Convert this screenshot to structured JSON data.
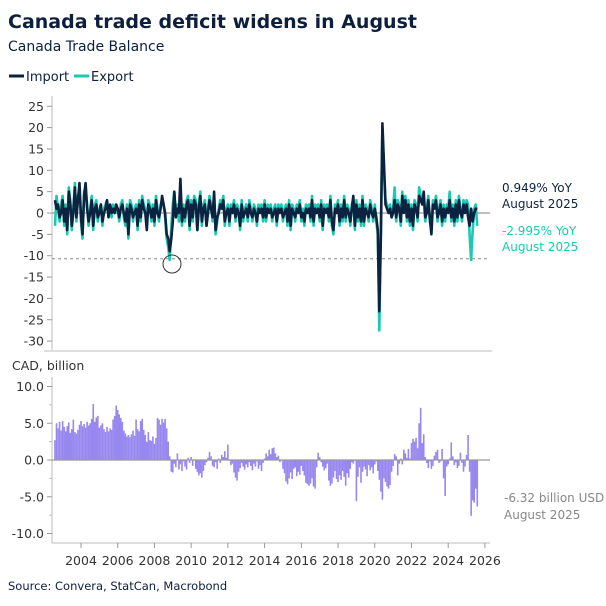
{
  "title": "Canada trade deficit widens in August",
  "subtitle": "Canada Trade Balance",
  "source": "Source: Convera, StatCan, Macrobond",
  "colors": {
    "import": "#0b2340",
    "export": "#19c9b2",
    "balance": "#9787ef",
    "title": "#0c1f3f"
  },
  "chart_data": [
    {
      "type": "line",
      "legend": [
        "Import",
        "Export"
      ],
      "legend_position": "top-left",
      "start": "2002-08",
      "frequency": "monthly",
      "ylim": [
        -30,
        25
      ],
      "yticks": [
        25,
        20,
        15,
        10,
        5,
        0,
        -5,
        -10,
        -15,
        -20,
        -25,
        -30
      ],
      "reference_line": -10.7,
      "annotations": {
        "import_value": "0.949% YoY",
        "import_date": "August 2025",
        "export_value": "-2.995% YoY",
        "export_date": "August 2025"
      },
      "series": [
        {
          "name": "Import",
          "values": [
            3,
            1,
            2,
            -1,
            0,
            3,
            -2,
            1,
            -4,
            5,
            2,
            -3,
            0,
            6,
            -1,
            3,
            7,
            -1,
            -5,
            4,
            7,
            1,
            -2,
            0,
            3,
            -3,
            1,
            2,
            -1,
            0,
            2,
            -2,
            0,
            1,
            3,
            -1,
            2,
            0,
            1,
            0,
            2,
            1,
            -1,
            1,
            2,
            0,
            -2,
            1,
            -5,
            2,
            1,
            -1,
            0,
            1,
            -3,
            2,
            -1,
            3,
            1,
            0,
            -4,
            2,
            1,
            -1,
            1,
            -2,
            3,
            0,
            -1,
            1,
            4,
            2,
            0,
            -5,
            -6,
            -9,
            -6,
            -2,
            5,
            -1,
            1,
            0,
            8,
            -2,
            1,
            -1,
            2,
            3,
            -3,
            2,
            -1,
            3,
            2,
            -4,
            1,
            4,
            -2,
            1,
            2,
            -3,
            0,
            3,
            1,
            -1,
            5,
            -4,
            -1,
            0,
            2,
            1,
            3,
            -2,
            0,
            1,
            -2,
            1,
            0,
            2,
            -1,
            1,
            0,
            -3,
            2,
            -1,
            0,
            1,
            -1,
            2,
            0,
            -1,
            1,
            0,
            -2,
            1,
            0,
            1,
            -1,
            2,
            -1,
            1,
            0,
            1,
            -1,
            0,
            1,
            -2,
            1,
            0,
            1,
            -1,
            0,
            1,
            -2,
            2,
            -3,
            1,
            0,
            -1,
            1,
            0,
            2,
            -1,
            0,
            -2,
            1,
            0,
            1,
            -1,
            3,
            -2,
            1,
            0,
            1,
            -1,
            2,
            -3,
            1,
            0,
            1,
            -1,
            3,
            -2,
            -4,
            1,
            0,
            2,
            -2,
            1,
            -1,
            3,
            -1,
            1,
            0,
            -2,
            1,
            4,
            -3,
            2,
            -1,
            1,
            -2,
            3,
            -2,
            1,
            0,
            -1,
            2,
            0,
            -1,
            1,
            -1,
            -4,
            -23,
            -5,
            21,
            12,
            2,
            1,
            0,
            1,
            -1,
            0,
            3,
            -1,
            2,
            1,
            -2,
            4,
            0,
            3,
            -1,
            2,
            -2,
            1,
            -3,
            2,
            1,
            -1,
            4,
            3,
            2,
            5,
            -1,
            0,
            3,
            -1,
            -5,
            2,
            1,
            3,
            -1,
            0,
            2,
            -2,
            1,
            -1,
            1,
            0,
            3,
            -1,
            1,
            -2,
            2,
            -1,
            3,
            0,
            -1,
            2,
            0,
            2,
            -1,
            -3,
            1,
            -2,
            0,
            1,
            0.949
          ]
        },
        {
          "name": "Export",
          "values": [
            -3,
            4,
            1,
            -2,
            2,
            4,
            -3,
            2,
            -5,
            6,
            3,
            -4,
            1,
            7,
            -2,
            4,
            5,
            -2,
            -6,
            5,
            6,
            2,
            -3,
            1,
            4,
            -4,
            2,
            3,
            -2,
            1,
            2,
            -3,
            1,
            2,
            3,
            -1,
            1,
            -1,
            2,
            0,
            1,
            1,
            -2,
            2,
            3,
            -1,
            -3,
            2,
            -6,
            3,
            2,
            -2,
            1,
            2,
            -4,
            3,
            -2,
            4,
            2,
            1,
            -3,
            3,
            2,
            -2,
            2,
            -3,
            4,
            1,
            -2,
            2,
            3,
            2,
            -1,
            -6,
            -8,
            -11,
            -3,
            2,
            5,
            -1,
            2,
            -2,
            4,
            -3,
            2,
            -2,
            3,
            4,
            -4,
            3,
            -2,
            4,
            3,
            -4,
            2,
            5,
            -3,
            2,
            3,
            -3,
            1,
            4,
            2,
            -2,
            4,
            -5,
            -2,
            1,
            3,
            2,
            4,
            -3,
            1,
            2,
            -3,
            2,
            1,
            3,
            -2,
            2,
            1,
            -4,
            3,
            -2,
            1,
            2,
            -2,
            3,
            1,
            -2,
            2,
            1,
            -3,
            2,
            1,
            2,
            -2,
            3,
            -2,
            2,
            1,
            2,
            -2,
            1,
            2,
            -3,
            2,
            1,
            2,
            -2,
            1,
            2,
            -3,
            3,
            -4,
            2,
            1,
            -2,
            2,
            1,
            3,
            -2,
            1,
            -3,
            2,
            1,
            2,
            -2,
            4,
            -3,
            2,
            1,
            2,
            -2,
            3,
            -4,
            2,
            1,
            2,
            -2,
            4,
            -3,
            -5,
            2,
            1,
            3,
            -3,
            2,
            -2,
            4,
            -2,
            2,
            1,
            -3,
            2,
            3,
            -4,
            3,
            -2,
            2,
            -3,
            4,
            -3,
            2,
            1,
            -2,
            3,
            1,
            -2,
            2,
            -2,
            -5,
            -27.5,
            -3,
            20,
            10,
            3,
            2,
            1,
            2,
            -1,
            1,
            6,
            -2,
            3,
            2,
            -3,
            5,
            1,
            4,
            -2,
            3,
            -3,
            2,
            -4,
            3,
            2,
            -2,
            6,
            4,
            3,
            3,
            -2,
            1,
            4,
            -2,
            -4,
            3,
            2,
            4,
            -2,
            1,
            3,
            -3,
            2,
            -2,
            2,
            1,
            5,
            -2,
            2,
            -3,
            3,
            -2,
            4,
            1,
            -2,
            3,
            1,
            3,
            2,
            -5,
            -11,
            -4,
            1,
            2,
            -2.995
          ]
        }
      ]
    },
    {
      "type": "bar",
      "ylabel": "CAD, billion",
      "start": "2002-08",
      "frequency": "monthly",
      "ylim": [
        -10,
        10
      ],
      "yticks": [
        "10.0",
        "5.0",
        "0.0",
        "-5.0",
        "-10.0"
      ],
      "xticks": [
        "2004",
        "2006",
        "2008",
        "2010",
        "2012",
        "2014",
        "2016",
        "2018",
        "2020",
        "2022",
        "2024",
        "2026"
      ],
      "annotations": {
        "value": "-6.32 billion USD",
        "date": "August 2025"
      },
      "series": [
        {
          "name": "Trade Balance",
          "values": [
            2.7,
            5.0,
            4.3,
            5.2,
            4.0,
            5.3,
            4.5,
            3.9,
            4.6,
            5.1,
            3.7,
            4.2,
            5.5,
            3.8,
            3.6,
            4.1,
            4.8,
            5.3,
            4.6,
            4.9,
            4.4,
            5.2,
            4.7,
            5.0,
            5.6,
            7.6,
            5.2,
            5.8,
            6.0,
            4.4,
            4.7,
            5.0,
            4.2,
            3.8,
            4.5,
            3.9,
            4.3,
            4.1,
            5.5,
            6.0,
            7.4,
            6.8,
            6.2,
            5.7,
            5.2,
            4.0,
            3.6,
            3.2,
            3.4,
            3.1,
            3.5,
            4.0,
            3.3,
            5.5,
            4.2,
            3.9,
            5.3,
            5.6,
            4.1,
            3.4,
            2.5,
            3.8,
            2.7,
            2.6,
            3.2,
            2.2,
            3.0,
            5.7,
            5.5,
            4.8,
            5.6,
            5.1,
            5.6,
            4.3,
            2.5,
            0.5,
            -1.6,
            -1.7,
            -0.5,
            -1.0,
            0.9,
            -1.3,
            -0.6,
            -1.5,
            -0.2,
            -0.9,
            -1.3,
            0.3,
            -0.4,
            0.4,
            -0.8,
            0.1,
            -1.2,
            -1.6,
            -2.1,
            -1.8,
            -2.4,
            -1.5,
            -0.7,
            -0.3,
            0.3,
            1.1,
            0.5,
            -0.8,
            -1.0,
            -0.3,
            -1.2,
            0.2,
            -0.4,
            0.7,
            0.4,
            1.2,
            0.3,
            2.1,
            -0.1,
            -0.7,
            -0.5,
            -1.7,
            -2.4,
            -2.8,
            -1.6,
            -1.1,
            -0.4,
            -0.9,
            -1.3,
            -0.6,
            -1.0,
            -0.3,
            -0.8,
            -1.4,
            -0.5,
            -0.9,
            -0.2,
            -1.2,
            -0.7,
            -1.5,
            -0.4,
            0.2,
            0.9,
            0.5,
            1.4,
            0.8,
            1.6,
            1.7,
            0.9,
            0.4,
            0.6,
            -0.3,
            -0.1,
            -1.2,
            -1.8,
            -2.9,
            -3.3,
            -2.5,
            -1.7,
            -2.6,
            -1.2,
            -1.0,
            -2.2,
            -1.6,
            -2.0,
            -0.8,
            -1.5,
            -2.1,
            -3.1,
            -3.3,
            -3.5,
            -3.2,
            -2.5,
            -3.6,
            -3.9,
            -1.0,
            1.0,
            0.4,
            -0.3,
            -0.9,
            -1.4,
            -1.1,
            -0.5,
            -2.8,
            -3.5,
            -3.2,
            -2.4,
            -1.5,
            -2.6,
            -3.0,
            -2.1,
            -2.7,
            -1.5,
            -2.3,
            -3.5,
            -1.8,
            -2.4,
            -1.2,
            -0.3,
            -0.5,
            -0.1,
            -5.6,
            -2.3,
            -1.0,
            -3.1,
            -1.6,
            -0.9,
            -1.3,
            -2.2,
            -0.7,
            -1.4,
            -1.0,
            -1.8,
            -0.6,
            -0.2,
            -1.5,
            -2.7,
            -4.3,
            -5.4,
            -2.5,
            -3.0,
            -3.6,
            -3.9,
            -3.4,
            -1.6,
            -0.8,
            0.8,
            0.5,
            -2.1,
            -0.5,
            0.2,
            -0.6,
            1.4,
            0.9,
            0.3,
            1.5,
            0.2,
            2.3,
            2.9,
            2.5,
            3.0,
            1.6,
            5.0,
            7.1,
            2.3,
            3.5,
            0.4,
            -0.4,
            -1.1,
            -0.2,
            -1.2,
            -0.8,
            0.6,
            1.1,
            1.4,
            -0.4,
            -0.2,
            1.5,
            -2.5,
            -4.9,
            -0.9,
            -0.6,
            0.2,
            2.4,
            0.5,
            -0.7,
            -0.3,
            -1.1,
            -0.8,
            1.0,
            -0.4,
            -1.6,
            -0.9,
            0.7,
            3.4,
            -1.6,
            -7.6,
            -5.5,
            -5.8,
            -3.9,
            -6.32
          ]
        }
      ]
    }
  ]
}
